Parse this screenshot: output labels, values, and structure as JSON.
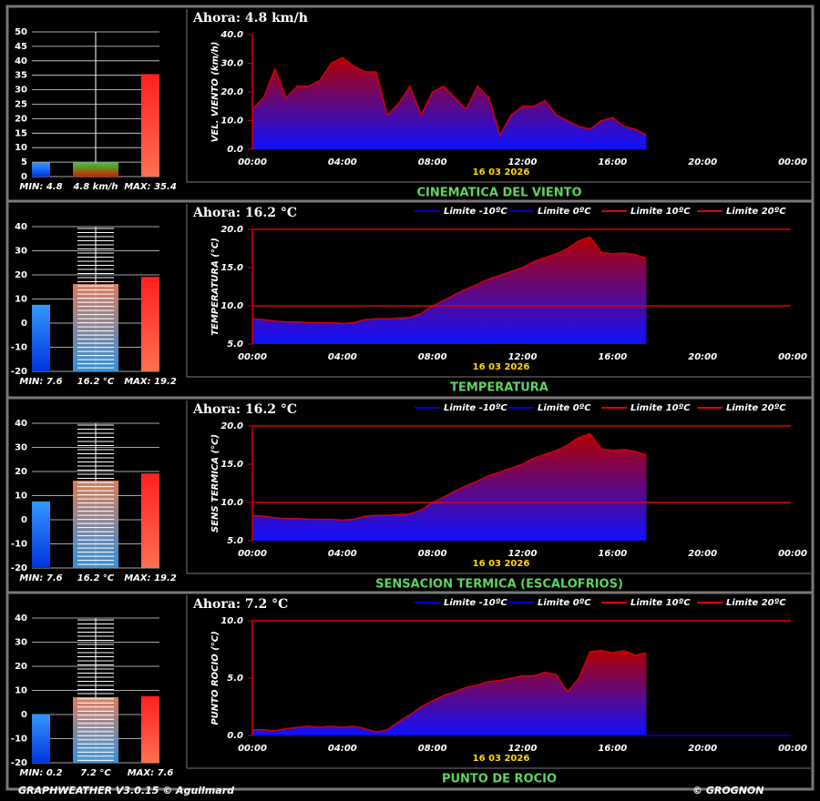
{
  "chart_data": [
    {
      "type": "bar",
      "values": [
        4.8,
        4.8,
        35.4
      ],
      "value_labels": [
        "MIN: 4.8",
        "4.8 km/h",
        "MAX: 35.4"
      ],
      "colors": [
        [
          "#3399ff",
          "#0033dd"
        ],
        [
          "#33cc33",
          "#cc2200"
        ],
        [
          "#ff2020",
          "#ff7050"
        ]
      ],
      "ylim": [
        0,
        50
      ],
      "yticks": [
        0,
        5,
        10,
        15,
        20,
        25,
        30,
        35,
        40,
        45,
        50
      ],
      "grid": true,
      "stripes": false
    },
    {
      "type": "area",
      "title": "Ahora: 4.8 km/h",
      "ylabel": "VEL. VIENTO (km/h)",
      "date": "16 03 2026",
      "caption": "CINEMATICA DEL VIENTO",
      "color": "#d00000",
      "fill": [
        "#b00000",
        "#1010ff"
      ],
      "x": [
        0,
        0.5,
        1,
        1.5,
        2,
        2.5,
        3,
        3.5,
        4,
        4.5,
        5,
        5.5,
        6,
        6.5,
        7,
        7.5,
        8,
        8.5,
        9,
        9.5,
        10,
        10.5,
        11,
        11.5,
        12,
        12.5,
        13,
        13.5,
        14,
        14.5,
        15,
        15.5,
        16,
        16.5,
        17,
        17.5
      ],
      "values": [
        14,
        18,
        28,
        18,
        22,
        22,
        24,
        30,
        32,
        29,
        27,
        27,
        12,
        16,
        22,
        12,
        20,
        22,
        18,
        14,
        22,
        18,
        5,
        12,
        15,
        15,
        17,
        12,
        10,
        8,
        7,
        10,
        11,
        8,
        7,
        5
      ],
      "xlim": [
        0,
        24
      ],
      "xticks": [
        {
          "value": 0,
          "label": "00:00"
        },
        {
          "value": 4,
          "label": "04:00"
        },
        {
          "value": 8,
          "label": "08:00"
        },
        {
          "value": 12,
          "label": "12:00"
        },
        {
          "value": 16,
          "label": "16:00"
        },
        {
          "value": 20,
          "label": "20:00"
        },
        {
          "value": 24,
          "label": "00:00"
        }
      ],
      "ylim": [
        0,
        40
      ],
      "yticks": [
        {
          "value": 0,
          "label": "0.0"
        },
        {
          "value": 10,
          "label": "10.0"
        },
        {
          "value": 20,
          "label": "20.0"
        },
        {
          "value": 30,
          "label": "30.0"
        },
        {
          "value": 40,
          "label": "40.0"
        }
      ],
      "thresholds": []
    },
    {
      "type": "bar",
      "values": [
        7.6,
        16.2,
        19.2
      ],
      "value_labels": [
        "MIN: 7.6",
        "16.2 °C",
        "MAX: 19.2"
      ],
      "colors": [
        [
          "#3399ff",
          "#0033dd"
        ],
        [
          "#f08a68",
          "#3aa0f0"
        ],
        [
          "#ff2020",
          "#ff7050"
        ]
      ],
      "ylim": [
        -20,
        40
      ],
      "yticks": [
        -20,
        -10,
        0,
        10,
        20,
        30,
        40
      ],
      "grid": true,
      "stripes": true
    },
    {
      "type": "area",
      "title": "Ahora: 16.2 °C",
      "ylabel": "TEMPERATURA (°C)",
      "date": "16 03 2026",
      "caption": "TEMPERATURA",
      "color": "#d00000",
      "fill": [
        "#b00000",
        "#1010ff"
      ],
      "x": [
        0,
        0.5,
        1,
        1.5,
        2,
        2.5,
        3,
        3.5,
        4,
        4.5,
        5,
        5.5,
        6,
        6.5,
        7,
        7.5,
        8,
        8.5,
        9,
        9.5,
        10,
        10.5,
        11,
        11.5,
        12,
        12.5,
        13,
        13.5,
        14,
        14.5,
        15,
        15.5,
        16,
        16.5,
        17,
        17.5
      ],
      "values": [
        8.3,
        8.2,
        8.0,
        7.9,
        7.9,
        7.8,
        7.8,
        7.8,
        7.7,
        7.8,
        8.2,
        8.3,
        8.3,
        8.4,
        8.5,
        9.0,
        10.0,
        10.7,
        11.5,
        12.2,
        12.8,
        13.5,
        14.0,
        14.5,
        15.0,
        15.8,
        16.3,
        16.8,
        17.5,
        18.5,
        19.0,
        17.0,
        16.8,
        16.9,
        16.7,
        16.2
      ],
      "xlim": [
        0,
        24
      ],
      "xticks": [
        {
          "value": 0,
          "label": "00:00"
        },
        {
          "value": 4,
          "label": "04:00"
        },
        {
          "value": 8,
          "label": "08:00"
        },
        {
          "value": 12,
          "label": "12:00"
        },
        {
          "value": 16,
          "label": "16:00"
        },
        {
          "value": 20,
          "label": "20:00"
        },
        {
          "value": 24,
          "label": "00:00"
        }
      ],
      "ylim": [
        5,
        20
      ],
      "yticks": [
        {
          "value": 5,
          "label": "5.0"
        },
        {
          "value": 10,
          "label": "10.0"
        },
        {
          "value": 15,
          "label": "15.0"
        },
        {
          "value": 20,
          "label": "20.0"
        }
      ],
      "thresholds": [
        {
          "name": "Limite -10ºC",
          "value": -10,
          "color": "#0000cc"
        },
        {
          "name": "Limite 0ºC",
          "value": 0,
          "color": "#0000cc"
        },
        {
          "name": "Limite 10ºC",
          "value": 10,
          "color": "#dd0000"
        },
        {
          "name": "Limite 20ºC",
          "value": 20,
          "color": "#dd0000"
        }
      ]
    },
    {
      "type": "bar",
      "values": [
        7.6,
        16.2,
        19.2
      ],
      "value_labels": [
        "MIN: 7.6",
        "16.2 °C",
        "MAX: 19.2"
      ],
      "colors": [
        [
          "#3399ff",
          "#0033dd"
        ],
        [
          "#f08a68",
          "#3aa0f0"
        ],
        [
          "#ff2020",
          "#ff7050"
        ]
      ],
      "ylim": [
        -20,
        40
      ],
      "yticks": [
        -20,
        -10,
        0,
        10,
        20,
        30,
        40
      ],
      "grid": true,
      "stripes": true
    },
    {
      "type": "area",
      "title": "Ahora: 16.2 °C",
      "ylabel": "SENS TERMICA (°C)",
      "date": "16 03 2026",
      "caption": "SENSACION TERMICA (ESCALOFRIOS)",
      "color": "#d00000",
      "fill": [
        "#b00000",
        "#1010ff"
      ],
      "x": [
        0,
        0.5,
        1,
        1.5,
        2,
        2.5,
        3,
        3.5,
        4,
        4.5,
        5,
        5.5,
        6,
        6.5,
        7,
        7.5,
        8,
        8.5,
        9,
        9.5,
        10,
        10.5,
        11,
        11.5,
        12,
        12.5,
        13,
        13.5,
        14,
        14.5,
        15,
        15.5,
        16,
        16.5,
        17,
        17.5
      ],
      "values": [
        8.3,
        8.2,
        8.0,
        7.9,
        7.9,
        7.8,
        7.8,
        7.8,
        7.7,
        7.8,
        8.2,
        8.3,
        8.3,
        8.4,
        8.5,
        9.0,
        10.0,
        10.7,
        11.5,
        12.2,
        12.8,
        13.5,
        14.0,
        14.5,
        15.0,
        15.8,
        16.3,
        16.8,
        17.5,
        18.5,
        19.0,
        17.0,
        16.8,
        16.9,
        16.7,
        16.2
      ],
      "xlim": [
        0,
        24
      ],
      "xticks": [
        {
          "value": 0,
          "label": "00:00"
        },
        {
          "value": 4,
          "label": "04:00"
        },
        {
          "value": 8,
          "label": "08:00"
        },
        {
          "value": 12,
          "label": "12:00"
        },
        {
          "value": 16,
          "label": "16:00"
        },
        {
          "value": 20,
          "label": "20:00"
        },
        {
          "value": 24,
          "label": "00:00"
        }
      ],
      "ylim": [
        5,
        20
      ],
      "yticks": [
        {
          "value": 5,
          "label": "5.0"
        },
        {
          "value": 10,
          "label": "10.0"
        },
        {
          "value": 15,
          "label": "15.0"
        },
        {
          "value": 20,
          "label": "20.0"
        }
      ],
      "thresholds": [
        {
          "name": "Limite -10ºC",
          "value": -10,
          "color": "#0000cc"
        },
        {
          "name": "Limite 0ºC",
          "value": 0,
          "color": "#0000cc"
        },
        {
          "name": "Limite 10ºC",
          "value": 10,
          "color": "#dd0000"
        },
        {
          "name": "Limite 20ºC",
          "value": 20,
          "color": "#dd0000"
        }
      ]
    },
    {
      "type": "bar",
      "values": [
        0.2,
        7.2,
        7.6
      ],
      "value_labels": [
        "MIN: 0.2",
        "7.2 °C",
        "MAX: 7.6"
      ],
      "colors": [
        [
          "#3399ff",
          "#0033dd"
        ],
        [
          "#f08a68",
          "#3aa0f0"
        ],
        [
          "#ff2020",
          "#ff7050"
        ]
      ],
      "ylim": [
        -20,
        40
      ],
      "yticks": [
        -20,
        -10,
        0,
        10,
        20,
        30,
        40
      ],
      "grid": true,
      "stripes": true
    },
    {
      "type": "area",
      "title": "Ahora: 7.2 °C",
      "ylabel": "PUNTO ROCIO (°C)",
      "date": "16 03 2026",
      "caption": "PUNTO DE ROCIO",
      "color": "#d00000",
      "fill": [
        "#b00000",
        "#1010ff"
      ],
      "x": [
        0,
        0.5,
        1,
        1.5,
        2,
        2.5,
        3,
        3.5,
        4,
        4.5,
        5,
        5.5,
        6,
        6.5,
        7,
        7.5,
        8,
        8.5,
        9,
        9.5,
        10,
        10.5,
        11,
        11.5,
        12,
        12.5,
        13,
        13.5,
        14,
        14.5,
        15,
        15.5,
        16,
        16.5,
        17,
        17.5
      ],
      "values": [
        0.5,
        0.5,
        0.4,
        0.6,
        0.7,
        0.8,
        0.7,
        0.8,
        0.7,
        0.8,
        0.6,
        0.3,
        0.5,
        1.2,
        1.8,
        2.5,
        3.0,
        3.5,
        3.8,
        4.2,
        4.4,
        4.7,
        4.8,
        5.0,
        5.2,
        5.2,
        5.5,
        5.3,
        3.8,
        5.0,
        7.3,
        7.4,
        7.2,
        7.4,
        7.0,
        7.2
      ],
      "xlim": [
        0,
        24
      ],
      "xticks": [
        {
          "value": 0,
          "label": "00:00"
        },
        {
          "value": 4,
          "label": "04:00"
        },
        {
          "value": 8,
          "label": "08:00"
        },
        {
          "value": 12,
          "label": "12:00"
        },
        {
          "value": 16,
          "label": "16:00"
        },
        {
          "value": 20,
          "label": "20:00"
        },
        {
          "value": 24,
          "label": "00:00"
        }
      ],
      "ylim": [
        0,
        10
      ],
      "yticks": [
        {
          "value": 0,
          "label": "0.0"
        },
        {
          "value": 5,
          "label": "5.0"
        },
        {
          "value": 10,
          "label": "10.0"
        }
      ],
      "thresholds": [
        {
          "name": "Limite -10ºC",
          "value": -10,
          "color": "#0000cc"
        },
        {
          "name": "Limite 0ºC",
          "value": 0,
          "color": "#0000cc"
        },
        {
          "name": "Limite 10ºC",
          "value": 10,
          "color": "#dd0000"
        },
        {
          "name": "Limite 20ºC",
          "value": 20,
          "color": "#dd0000"
        }
      ]
    }
  ],
  "footer": {
    "left": "GRAPHWEATHER V3.0.15 © Aguilmard",
    "right": "© GROGNON"
  }
}
